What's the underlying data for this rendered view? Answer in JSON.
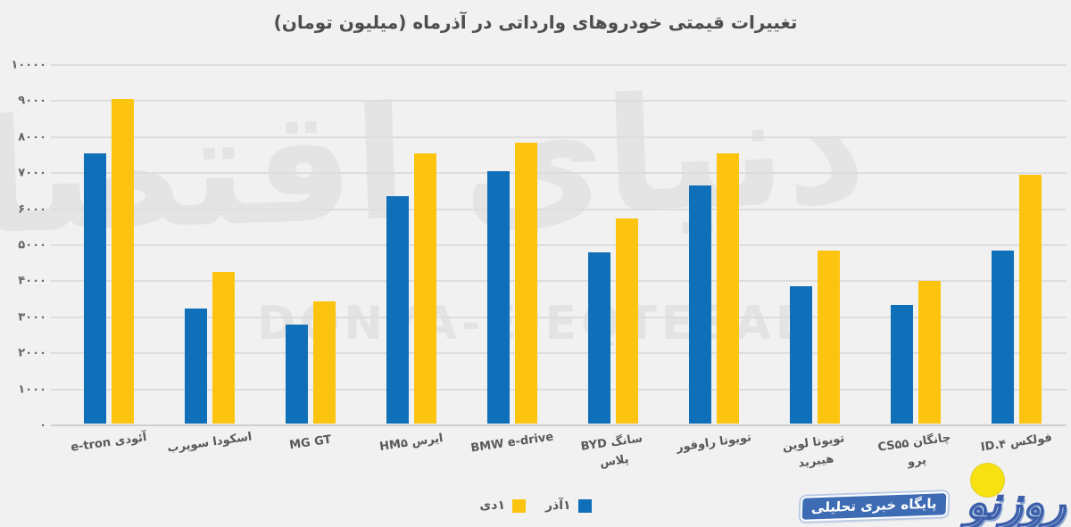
{
  "title": "تغییرات قیمتی خودروهای وارداتی در آذرماه (میلیون تومان)",
  "watermark": {
    "fa": "دنیای اقتصاد",
    "en": "DONYA-E-EQTESAD"
  },
  "logo": {
    "name": "روزنو",
    "tagline": "پایگاه خبری تحلیلی"
  },
  "colors": {
    "azar_blue": "#0f6fb8",
    "dey_yellow": "#fdc40f",
    "background": "#f1f1f2",
    "gridline": "#dddddd",
    "text": "#595959"
  },
  "chart_data": {
    "type": "bar",
    "title": "تغییرات قیمتی خودروهای وارداتی در آذرماه (میلیون تومان)",
    "xlabel": "",
    "ylabel": "",
    "ylim": [
      0,
      10000
    ],
    "ytick_interval": 1000,
    "ytick_labels": [
      "۰",
      "۱۰۰۰",
      "۲۰۰۰",
      "۳۰۰۰",
      "۴۰۰۰",
      "۵۰۰۰",
      "۶۰۰۰",
      "۷۰۰۰",
      "۸۰۰۰",
      "۹۰۰۰",
      "۱۰۰۰۰"
    ],
    "grid": true,
    "legend_position": "bottom",
    "categories": [
      "آئودی e-tron",
      "اسکودا سوپرب",
      "MG GT",
      "ایرس HM۵",
      "BMW e-drive",
      "سانگ BYD پلاس",
      "تویوتا راوفور",
      "تویوتا لوین هیبرید",
      "چانگان CS۵۵ پرو",
      "فولکس ID.۴"
    ],
    "series": [
      {
        "name": "۱آذر",
        "color": "#0f6fb8",
        "values": [
          7500,
          3200,
          2750,
          6300,
          7000,
          4750,
          6600,
          3800,
          3300,
          4800
        ]
      },
      {
        "name": "۱دی",
        "color": "#fdc40f",
        "values": [
          9000,
          4200,
          3400,
          7500,
          7800,
          5700,
          7500,
          4800,
          3950,
          6900
        ]
      }
    ]
  }
}
